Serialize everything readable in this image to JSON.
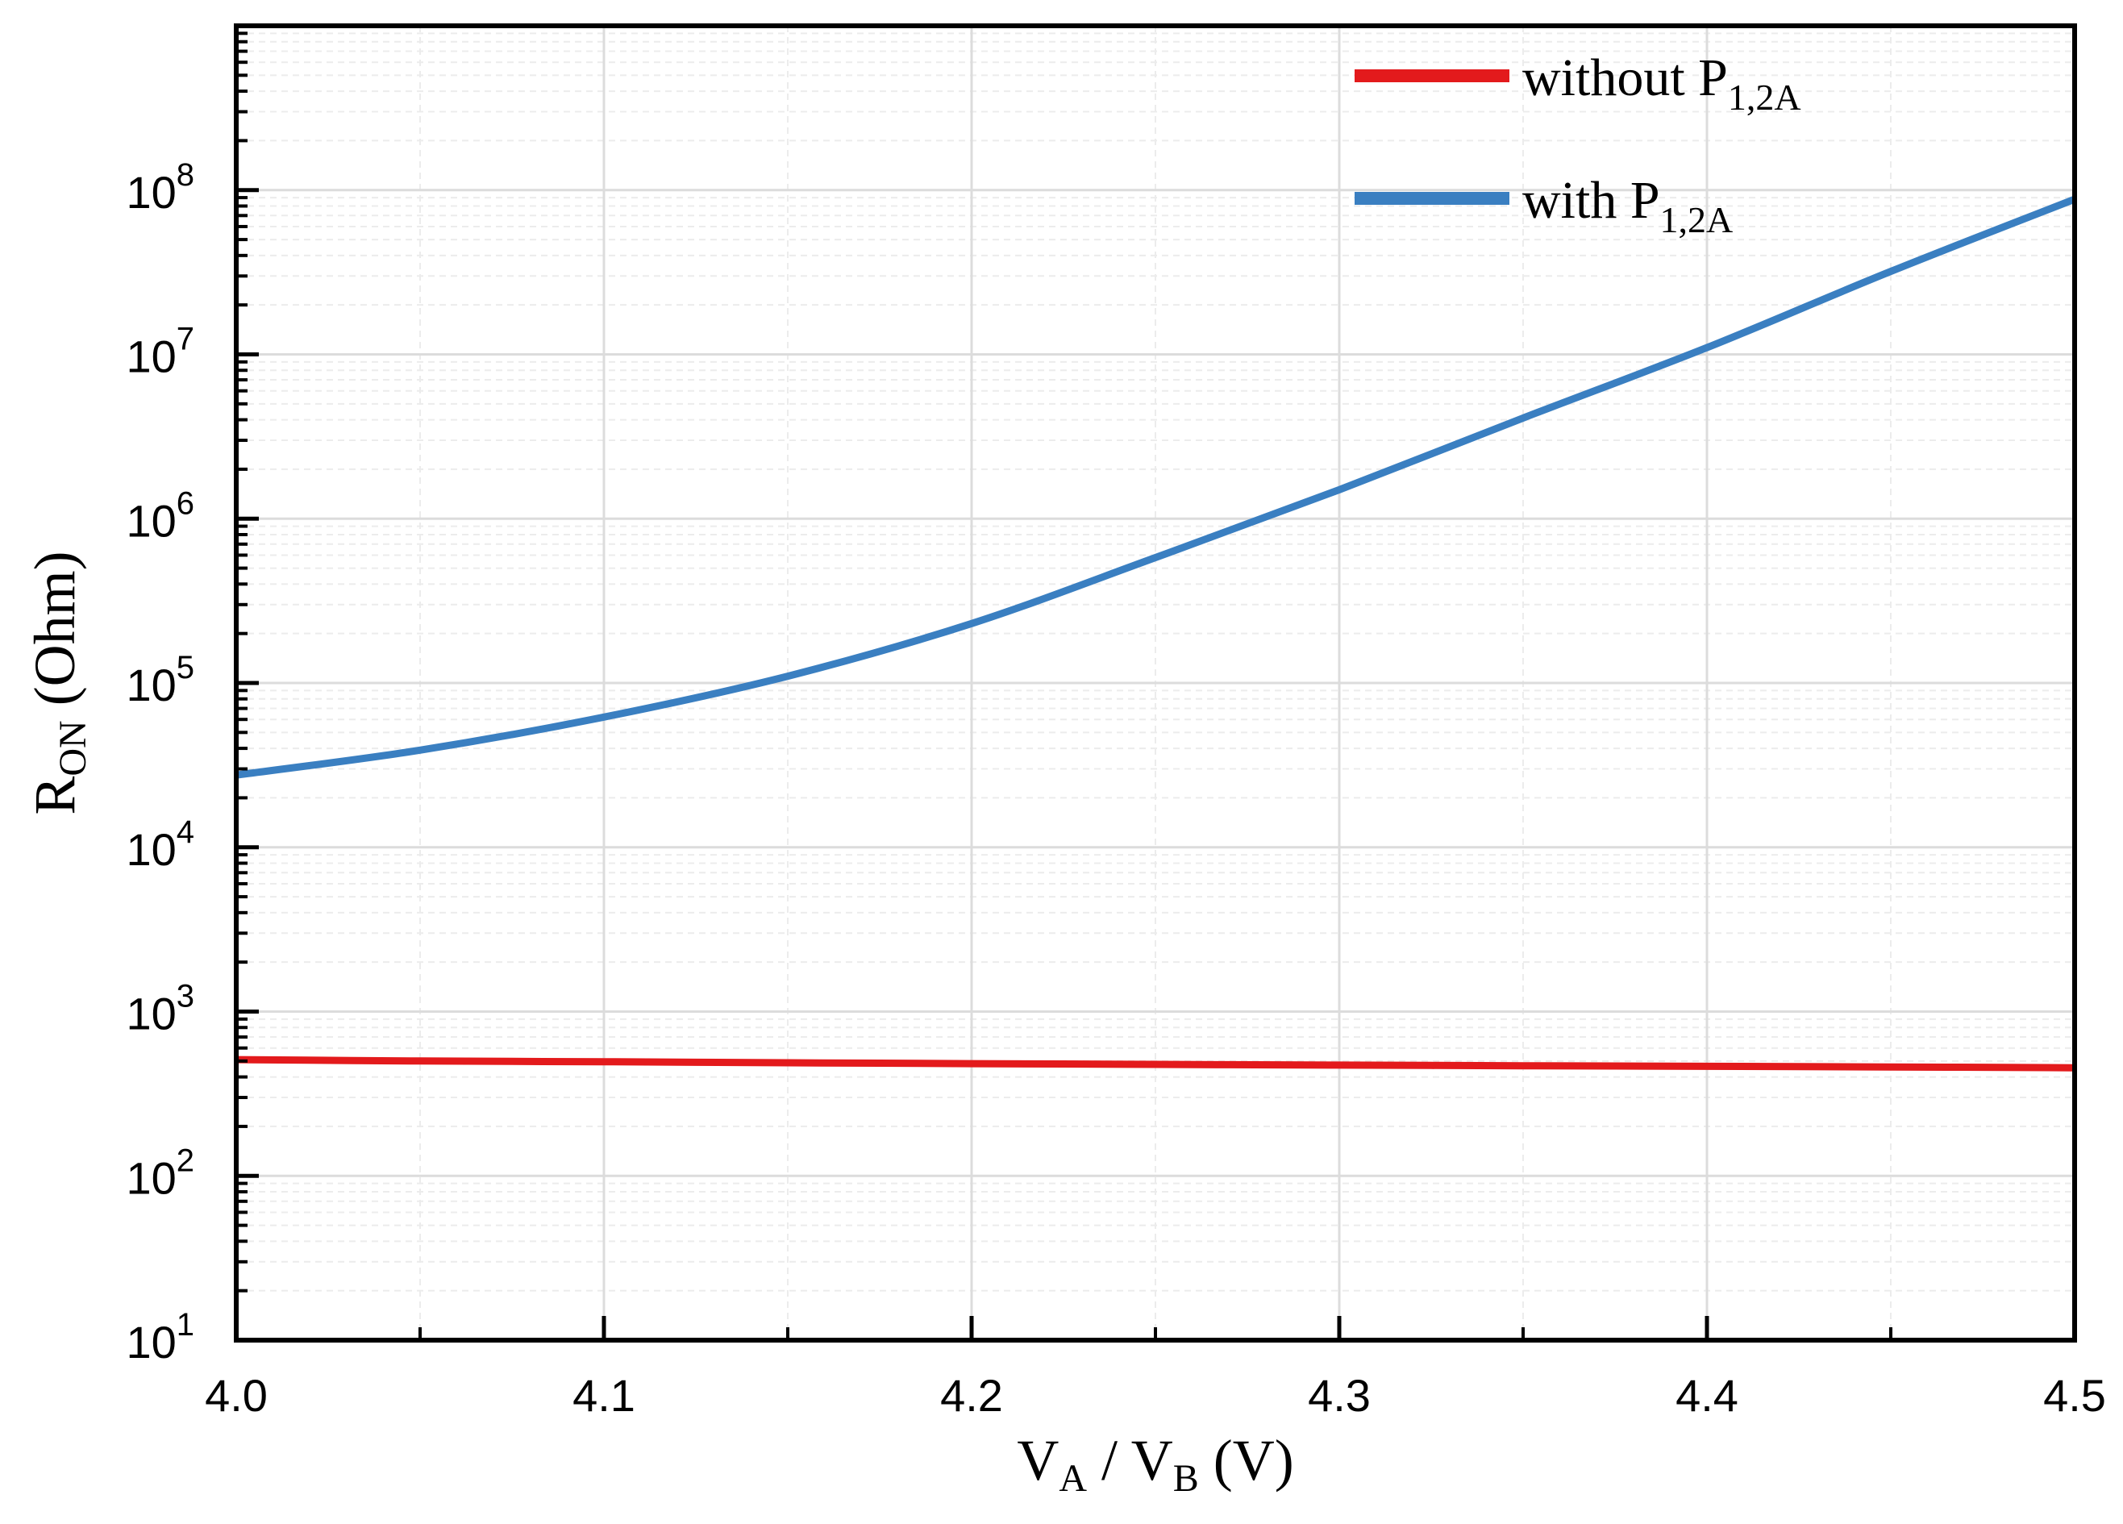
{
  "chart_data": {
    "type": "line",
    "xlabel": {
      "main": "V",
      "sub1": "A",
      "sep": " / V",
      "sub2": "B",
      "unit": " (V)"
    },
    "ylabel": {
      "main": "R",
      "sub": "ON",
      "unit": " (Ohm)"
    },
    "xlim": [
      4.0,
      4.5
    ],
    "ylim_log10": [
      1,
      9
    ],
    "yscale": "log",
    "grid": true,
    "legend_position": "top-right",
    "x_ticks": [
      "4.0",
      "4.1",
      "4.2",
      "4.3",
      "4.4",
      "4.5"
    ],
    "x_tick_values": [
      4.0,
      4.1,
      4.2,
      4.3,
      4.4,
      4.5
    ],
    "y_ticks": [
      {
        "base": "10",
        "exp": "1",
        "value": 1
      },
      {
        "base": "10",
        "exp": "2",
        "value": 2
      },
      {
        "base": "10",
        "exp": "3",
        "value": 3
      },
      {
        "base": "10",
        "exp": "4",
        "value": 4
      },
      {
        "base": "10",
        "exp": "5",
        "value": 5
      },
      {
        "base": "10",
        "exp": "6",
        "value": 6
      },
      {
        "base": "10",
        "exp": "7",
        "value": 7
      },
      {
        "base": "10",
        "exp": "8",
        "value": 8
      }
    ],
    "series": [
      {
        "name": "without P",
        "name_sub": "1,2A",
        "color": "#e31a1c",
        "x": [
          4.0,
          4.05,
          4.1,
          4.15,
          4.2,
          4.25,
          4.3,
          4.35,
          4.4,
          4.45,
          4.5
        ],
        "y": [
          510,
          500,
          495,
          488,
          482,
          477,
          472,
          468,
          464,
          460,
          455
        ]
      },
      {
        "name": "with P",
        "name_sub": "1,2A",
        "color": "#3a7fc1",
        "x": [
          4.0,
          4.05,
          4.1,
          4.15,
          4.2,
          4.25,
          4.3,
          4.35,
          4.4,
          4.45,
          4.5
        ],
        "y": [
          27500,
          39000,
          62000,
          110000,
          230000,
          580000,
          1500000,
          4100000,
          11000000,
          32000000,
          88000000
        ]
      }
    ]
  }
}
